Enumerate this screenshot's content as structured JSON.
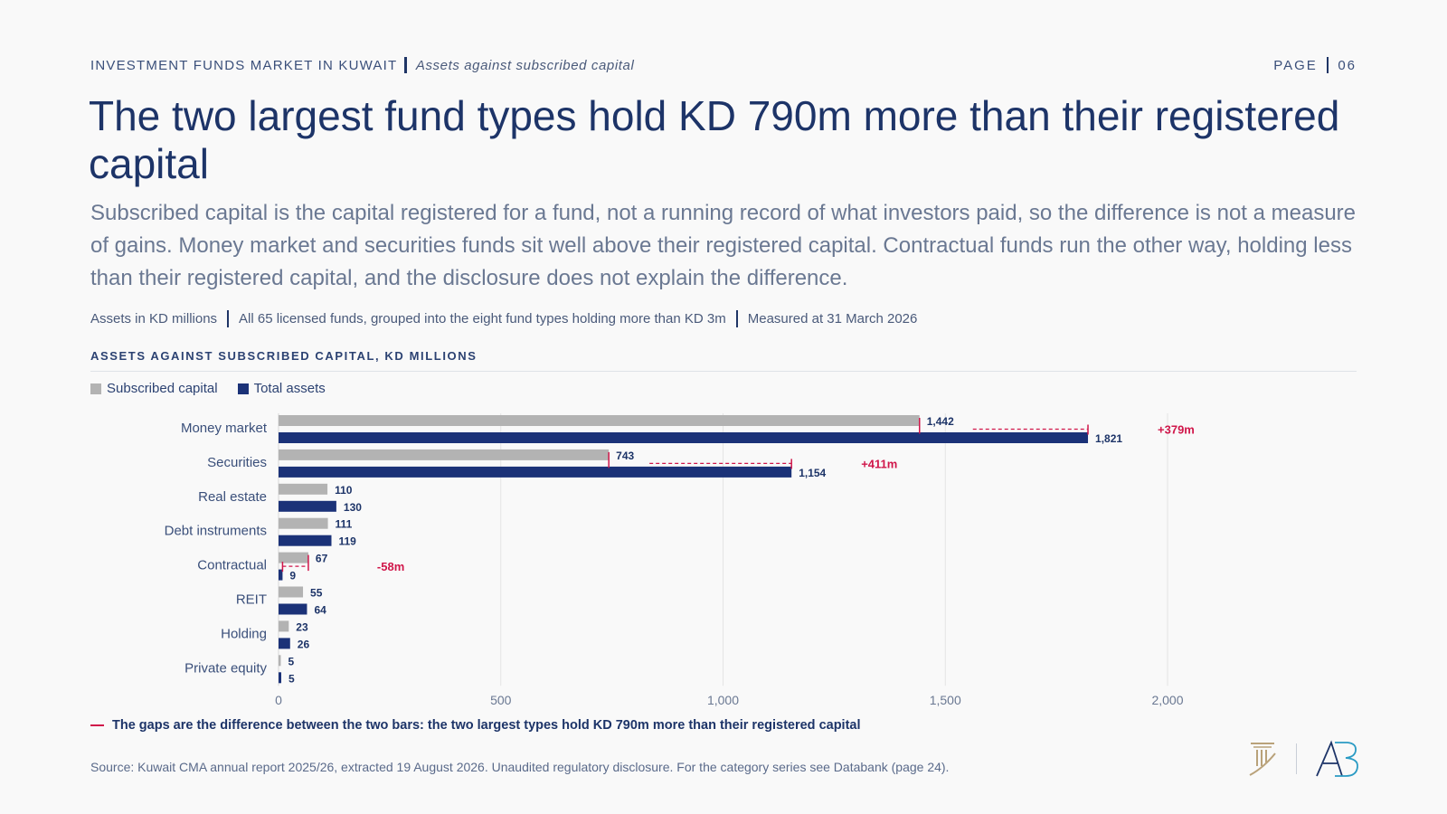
{
  "header": {
    "report": "INVESTMENT FUNDS MARKET IN KUWAIT",
    "section": "Assets against subscribed capital",
    "page_label": "PAGE",
    "page_number": "06"
  },
  "headline": "The two largest fund types hold KD 790m more than their registered capital",
  "deck": "Subscribed capital is the capital registered for a fund, not a running record of what investors paid, so the difference is not a measure of gains. Money market and securities funds sit well above their registered capital. Contractual funds run the other way, holding less than their registered capital, and the disclosure does not explain the difference.",
  "meta": {
    "units": "Assets in KD millions",
    "scope": "All 65 licensed funds, grouped into the eight fund types holding more than KD 3m",
    "date": "Measured at 31 March 2026"
  },
  "chart_data": {
    "type": "bar",
    "orientation": "horizontal",
    "title": "ASSETS AGAINST SUBSCRIBED CAPITAL, KD MILLIONS",
    "categories": [
      "Money market",
      "Securities",
      "Real estate",
      "Debt instruments",
      "Contractual",
      "REIT",
      "Holding",
      "Private equity"
    ],
    "series": [
      {
        "name": "Subscribed capital",
        "color": "#b3b3b3",
        "values": [
          1442,
          743,
          110,
          111,
          67,
          55,
          23,
          5
        ],
        "labels": [
          "1,442",
          "743",
          "110",
          "111",
          "67",
          "55",
          "23",
          "5"
        ]
      },
      {
        "name": "Total assets",
        "color": "#1b3278",
        "values": [
          1821,
          1154,
          130,
          119,
          9,
          64,
          26,
          5
        ],
        "labels": [
          "1,821",
          "1,154",
          "130",
          "119",
          "9",
          "64",
          "26",
          "5"
        ]
      }
    ],
    "gap_annotations": [
      {
        "category": "Money market",
        "label": "+379m"
      },
      {
        "category": "Securities",
        "label": "+411m"
      },
      {
        "category": "Contractual",
        "label": "-58m"
      }
    ],
    "xlim": [
      0,
      2000
    ],
    "xticks": [
      0,
      500,
      1000,
      1500,
      2000
    ],
    "xtick_labels": [
      "0",
      "500",
      "1,000",
      "1,500",
      "2,000"
    ],
    "grid": "vertical",
    "legend": "top-left",
    "gap_color": "#d0164a"
  },
  "note": "The gaps are the difference between the two bars: the two largest types hold KD 790m more than their registered capital",
  "source": "Source: Kuwait CMA annual report 2025/26, extracted 19 August 2026. Unaudited regulatory disclosure. For the category series see Databank (page 24).",
  "logos": [
    "pillar-logo",
    "ab-logo"
  ]
}
